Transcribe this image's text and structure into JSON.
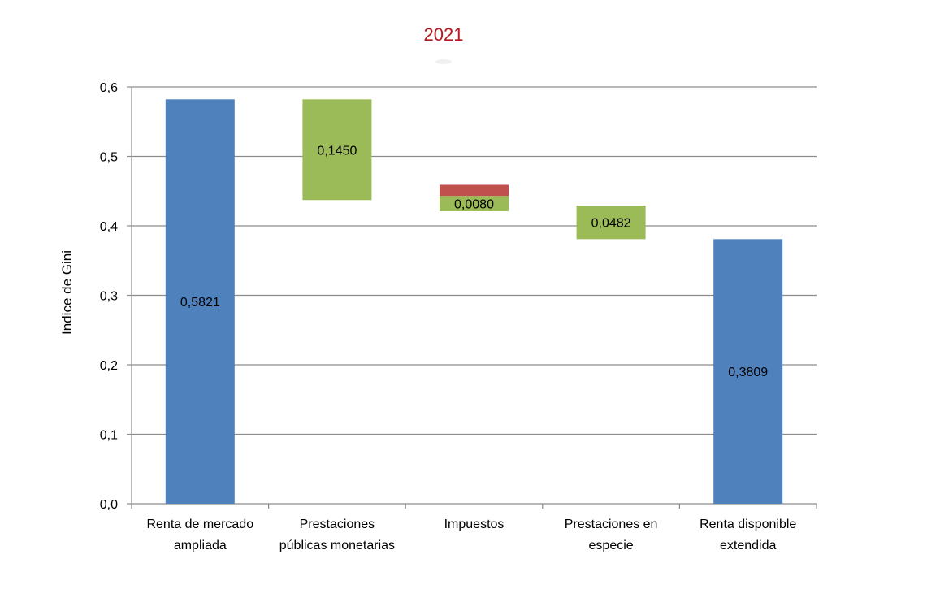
{
  "chart_data": {
    "type": "waterfall",
    "title": "2021",
    "ylabel": "Indice de Gini",
    "xlabel": "",
    "ylim": [
      0,
      0.6
    ],
    "yticks": [
      0.0,
      0.1,
      0.2,
      0.3,
      0.4,
      0.5,
      0.6
    ],
    "ytick_labels": [
      "0,0",
      "0,1",
      "0,2",
      "0,3",
      "0,4",
      "0,5",
      "0,6"
    ],
    "grid": true,
    "categories": [
      [
        "Renta de mercado",
        "ampliada"
      ],
      [
        "Prestaciones",
        "públicas monetarias"
      ],
      [
        "Impuestos"
      ],
      [
        "Prestaciones en",
        "especie"
      ],
      [
        "Renta disponible",
        "extendida"
      ]
    ],
    "bars": [
      {
        "kind": "total",
        "bottom": 0.0,
        "top": 0.5821,
        "label": "0,5821",
        "color": "#4f81bd"
      },
      {
        "kind": "decrease",
        "bottom": 0.4371,
        "top": 0.5821,
        "label": "0,1450",
        "color": "#9bbb59"
      },
      {
        "kind": "mixed",
        "bottom": 0.4211,
        "top": 0.4591,
        "label": "0,0080",
        "segments": [
          {
            "bottom": 0.4211,
            "top": 0.4431,
            "color": "#9bbb59"
          },
          {
            "bottom": 0.4431,
            "top": 0.4591,
            "color": "#c0504d"
          }
        ]
      },
      {
        "kind": "decrease",
        "bottom": 0.3809,
        "top": 0.4291,
        "label": "0,0482",
        "color": "#9bbb59"
      },
      {
        "kind": "total",
        "bottom": 0.0,
        "top": 0.3809,
        "label": "0,3809",
        "color": "#4f81bd"
      }
    ],
    "title_color": "#b0191e"
  }
}
